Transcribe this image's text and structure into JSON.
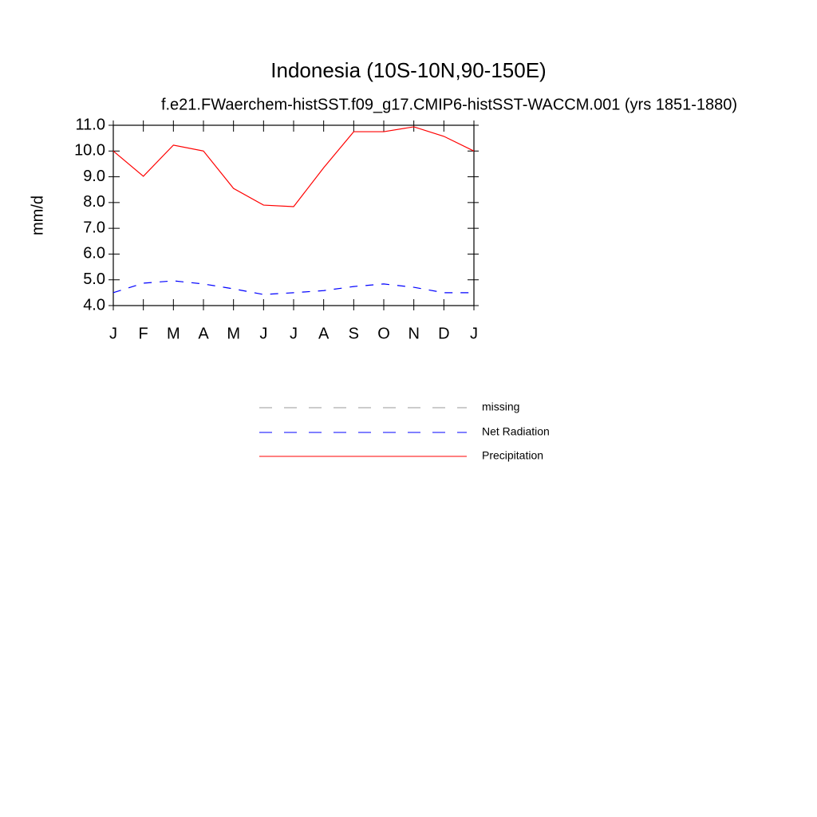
{
  "chart_data": {
    "type": "line",
    "title": "Indonesia (10S-10N,90-150E)",
    "subtitle": "f.e21.FWaerchem-histSST.f09_g17.CMIP6-histSST-WACCM.001 (yrs 1851-1880)",
    "y_label": "mm/d",
    "categories": [
      "J",
      "F",
      "M",
      "A",
      "M",
      "J",
      "J",
      "A",
      "S",
      "O",
      "N",
      "D",
      "J"
    ],
    "series": [
      {
        "name": "missing",
        "color": "#999999",
        "dash": true,
        "values": [
          null,
          null,
          null,
          null,
          null,
          null,
          null,
          null,
          null,
          null,
          null,
          null,
          null
        ]
      },
      {
        "name": "Net Radiation",
        "color": "#0000ff",
        "dash": true,
        "values": [
          4.5,
          4.87,
          4.96,
          4.84,
          4.65,
          4.43,
          4.5,
          4.58,
          4.74,
          4.84,
          4.71,
          4.5,
          4.5
        ]
      },
      {
        "name": "Precipitation",
        "color": "#ff0000",
        "dash": false,
        "values": [
          10.0,
          9.02,
          10.23,
          10.0,
          8.55,
          7.9,
          7.84,
          9.35,
          10.75,
          10.75,
          10.94,
          10.57,
          10.0
        ]
      }
    ],
    "ylim": [
      4,
      11
    ],
    "yticks": [
      {
        "value": 4,
        "label": "4.0"
      },
      {
        "value": 5,
        "label": "5.0"
      },
      {
        "value": 6,
        "label": "6.0"
      },
      {
        "value": 7,
        "label": "7.0"
      },
      {
        "value": 8,
        "label": "8.0"
      },
      {
        "value": 9,
        "label": "9.0"
      },
      {
        "value": 10,
        "label": "10.0"
      },
      {
        "value": 11,
        "label": "11.0"
      }
    ],
    "grid": false
  }
}
